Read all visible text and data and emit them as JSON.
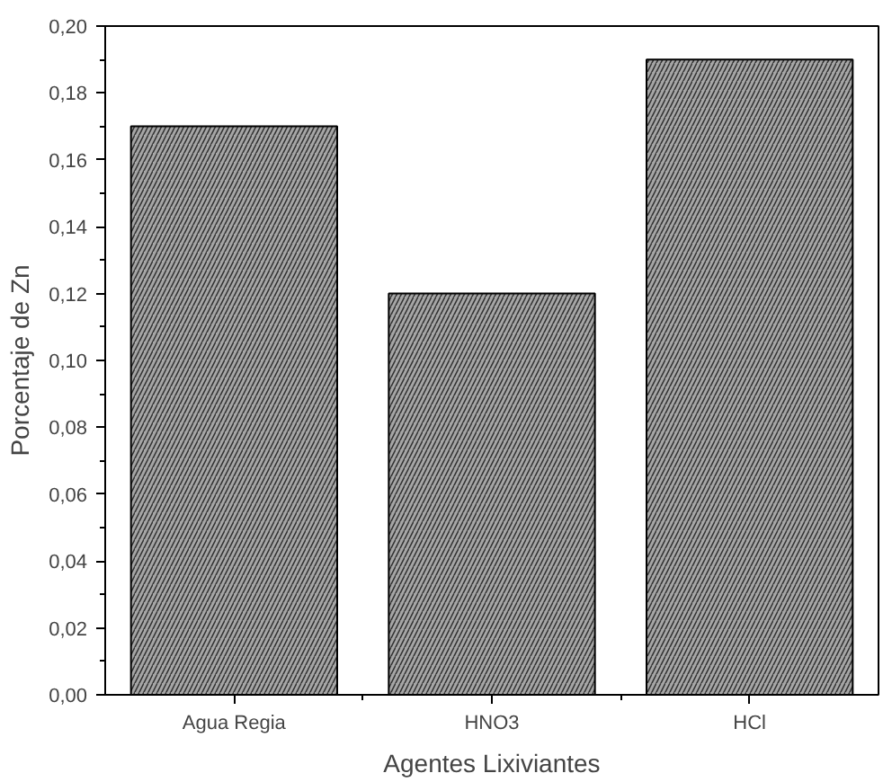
{
  "chart_data": {
    "type": "bar",
    "xlabel": "Agentes Lixiviantes",
    "ylabel": "Porcentaje de Zn",
    "categories": [
      "Agua Regia",
      "HNO3",
      "HCl"
    ],
    "values": [
      0.17,
      0.12,
      0.19
    ],
    "color": "#a6a6a6",
    "ylim": [
      0,
      0.2
    ],
    "yticks": [
      {
        "value": 0,
        "label": "0,00"
      },
      {
        "value": 0.02,
        "label": "0,02"
      },
      {
        "value": 0.04,
        "label": "0,04"
      },
      {
        "value": 0.06,
        "label": "0,06"
      },
      {
        "value": 0.08,
        "label": "0,08"
      },
      {
        "value": 0.1,
        "label": "0,10"
      },
      {
        "value": 0.12,
        "label": "0,12"
      },
      {
        "value": 0.14,
        "label": "0,14"
      },
      {
        "value": 0.16,
        "label": "0,16"
      },
      {
        "value": 0.18,
        "label": "0,18"
      },
      {
        "value": 0.2,
        "label": "0,20"
      }
    ],
    "grid": false
  }
}
